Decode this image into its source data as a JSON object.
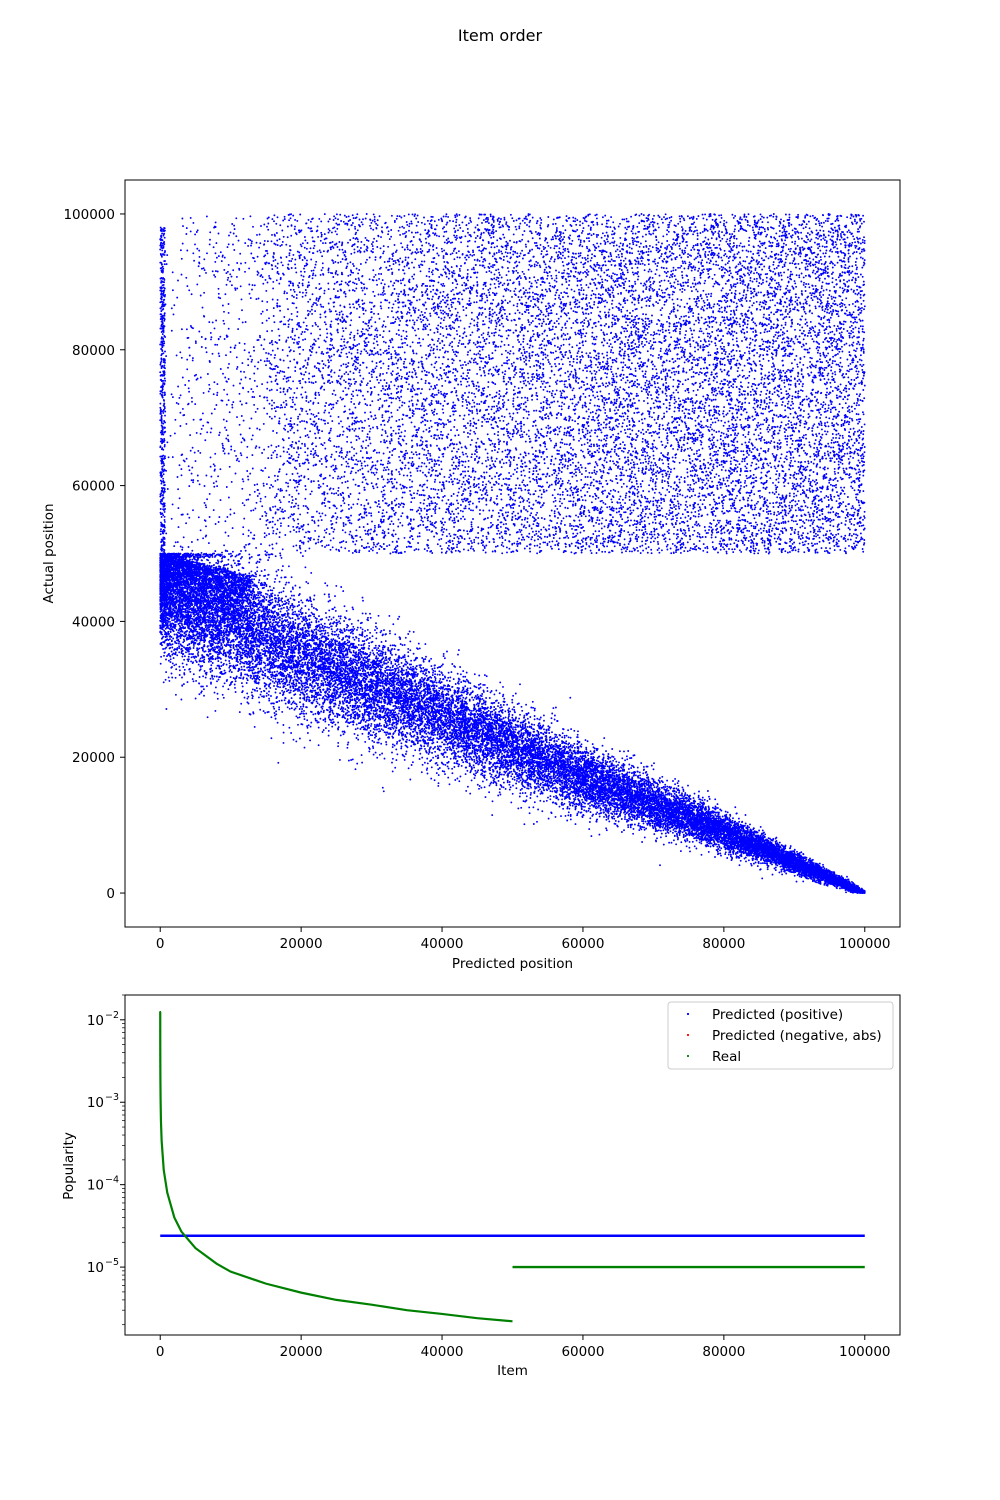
{
  "figure": {
    "title": "Item order"
  },
  "chart_data": [
    {
      "type": "scatter",
      "xlabel": "Predicted position",
      "ylabel": "Actual position",
      "xlim": [
        -5000,
        105000
      ],
      "ylim": [
        -5000,
        105000
      ],
      "xticks": [
        0,
        20000,
        40000,
        60000,
        80000,
        100000
      ],
      "yticks": [
        0,
        20000,
        40000,
        60000,
        80000,
        100000
      ],
      "xtick_labels": [
        "0",
        "20000",
        "40000",
        "60000",
        "80000",
        "100000"
      ],
      "ytick_labels": [
        "0",
        "20000",
        "40000",
        "60000",
        "80000",
        "100000"
      ],
      "grid": false,
      "marker_color": "#0000ff",
      "clusters": [
        {
          "description_ref": "upper-band",
          "x_range": [
            0,
            100000
          ],
          "y_range": [
            50000,
            100000
          ],
          "density_increases_with_x": true
        },
        {
          "description_ref": "lower-band",
          "x_range": [
            0,
            100000
          ],
          "y_at_x": [
            [
              0,
              45000
            ],
            [
              20000,
              35000
            ],
            [
              40000,
              26000
            ],
            [
              60000,
              17000
            ],
            [
              80000,
              9000
            ],
            [
              100000,
              0
            ]
          ],
          "y_cap": 50000
        }
      ]
    },
    {
      "type": "line",
      "xlabel": "Item",
      "ylabel": "Popularity",
      "xlim": [
        -5000,
        105000
      ],
      "ylog": true,
      "ylim": [
        1.5e-06,
        0.02
      ],
      "xticks": [
        0,
        20000,
        40000,
        60000,
        80000,
        100000
      ],
      "xtick_labels": [
        "0",
        "20000",
        "40000",
        "60000",
        "80000",
        "100000"
      ],
      "yticks": [
        1e-05,
        0.0001,
        0.001,
        0.01
      ],
      "ytick_labels": [
        [
          "10",
          "−5"
        ],
        [
          "10",
          "−4"
        ],
        [
          "10",
          "−3"
        ],
        [
          "10",
          "−2"
        ]
      ],
      "grid": false,
      "legend_position": "top-right",
      "series": [
        {
          "name": "Predicted (positive)",
          "color": "#0000ff",
          "x": [
            0,
            100000
          ],
          "y": [
            2.4e-05,
            2.4e-05
          ]
        },
        {
          "name": "Predicted (negative, abs)",
          "color": "#ff0000",
          "x": [],
          "y": []
        },
        {
          "name": "Real",
          "color": "#008000",
          "x": [
            1,
            5,
            10,
            20,
            50,
            100,
            200,
            500,
            1000,
            2000,
            3000,
            5000,
            8000,
            10000,
            15000,
            20000,
            25000,
            30000,
            35000,
            40000,
            45000,
            50000,
            50000,
            100000
          ],
          "y": [
            0.0125,
            0.005,
            0.0035,
            0.0021,
            0.0011,
            0.0006,
            0.00034,
            0.00015,
            8e-05,
            4e-05,
            2.7e-05,
            1.7e-05,
            1.1e-05,
            8.8e-06,
            6.3e-06,
            4.9e-06,
            4e-06,
            3.5e-06,
            3e-06,
            2.7e-06,
            2.4e-06,
            2.2e-06,
            1e-05,
            1e-05
          ]
        }
      ]
    }
  ]
}
